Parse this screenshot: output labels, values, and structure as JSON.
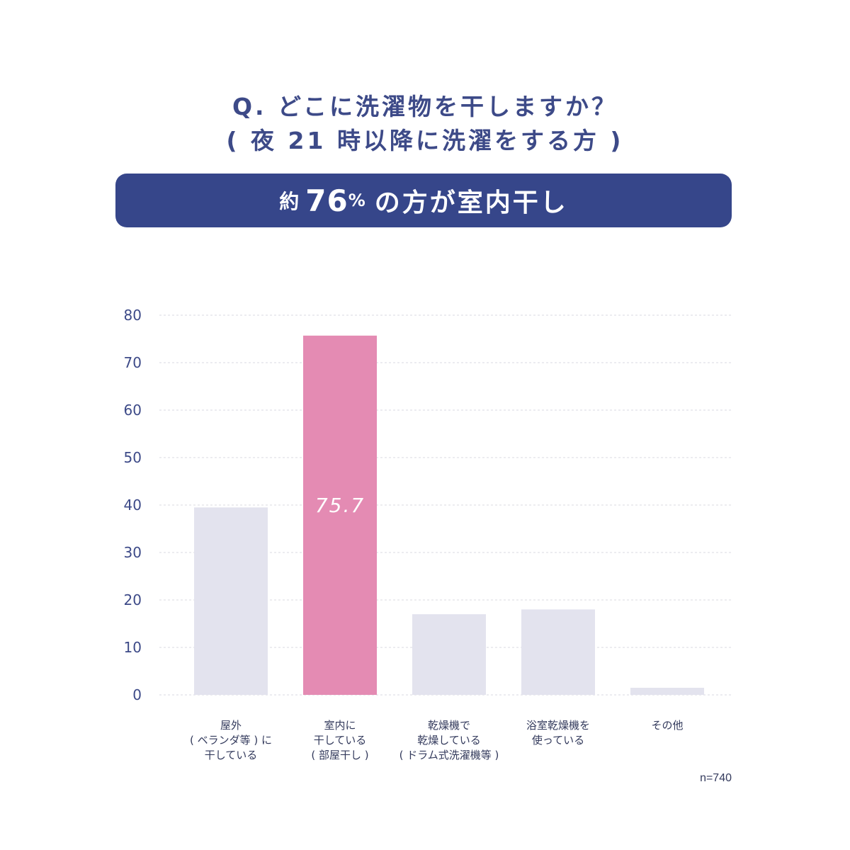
{
  "header": {
    "title_line1": "Q. どこに洗濯物を干しますか？",
    "title_line2": "( 夜 21 時以降に洗濯をする方 )"
  },
  "banner": {
    "prefix": "約",
    "number": "76",
    "percent": "%",
    "suffix": "の方が室内干し"
  },
  "footer": {
    "sample_size": "n=740"
  },
  "colors": {
    "highlight_bar": "#e48bb3",
    "normal_bar": "#e3e3ee",
    "banner_bg": "#36468a",
    "title_text": "#3d4a88",
    "grid": "#d8d8e2"
  },
  "chart_data": {
    "type": "bar",
    "ylim": [
      0,
      80
    ],
    "yticks": [
      "0",
      "10",
      "20",
      "30",
      "40",
      "50",
      "60",
      "70",
      "80"
    ],
    "grid": true,
    "categories": [
      [
        "屋外",
        "( ベランダ等 ) に",
        "干している"
      ],
      [
        "室内に",
        "干している",
        "( 部屋干し )"
      ],
      [
        "乾燥機で",
        "乾燥している",
        "( ドラム式洗濯機等 )"
      ],
      [
        "浴室乾燥機を",
        "使っている"
      ],
      [
        "その他"
      ]
    ],
    "values": [
      39.5,
      75.7,
      17,
      18,
      1.5
    ],
    "highlight_index": 1,
    "data_labels": [
      "",
      "75.7",
      "",
      "",
      ""
    ]
  }
}
